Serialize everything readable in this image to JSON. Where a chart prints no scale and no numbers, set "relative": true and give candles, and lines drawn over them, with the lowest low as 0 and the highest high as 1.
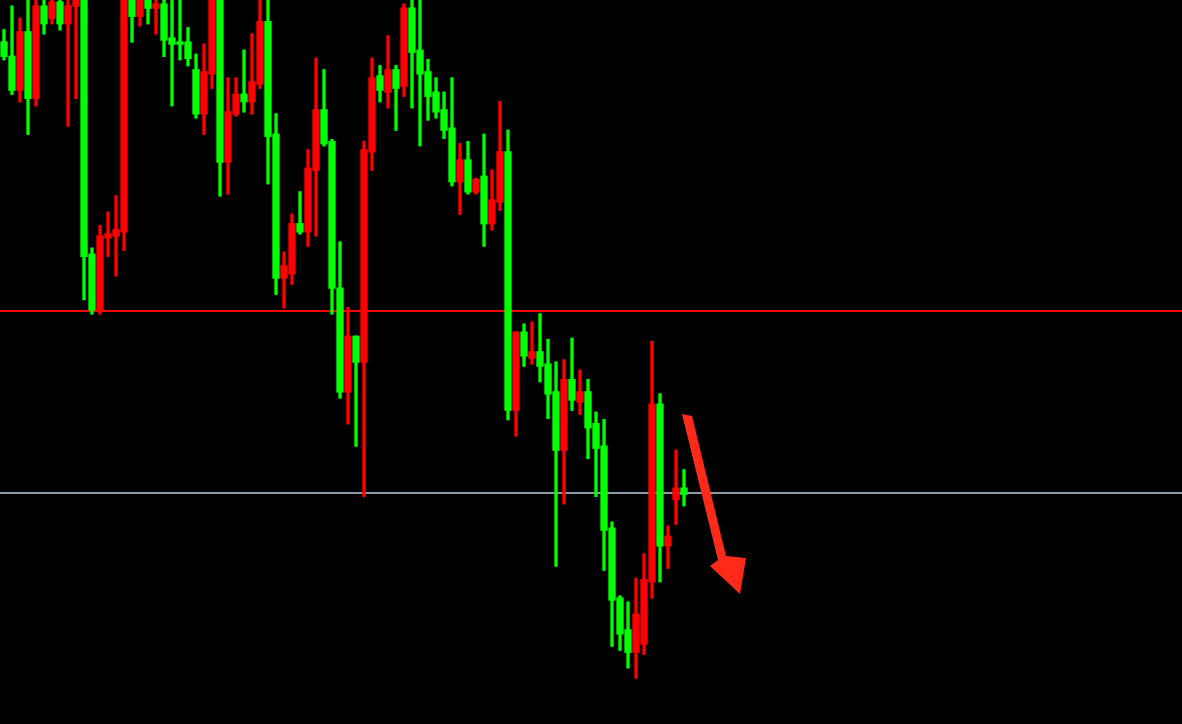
{
  "chart_data": {
    "type": "candlestick",
    "relative": true,
    "legend": false,
    "categories": [
      null,
      null,
      null,
      null,
      null,
      null,
      null,
      null,
      null,
      null,
      null,
      null,
      null,
      null,
      null,
      null,
      null,
      null,
      null,
      null,
      null,
      null,
      null,
      null,
      null,
      null,
      null,
      null,
      null,
      null,
      null,
      null,
      null,
      null,
      null,
      null,
      null,
      null,
      null,
      null,
      null,
      null,
      null,
      null,
      null,
      null,
      null,
      null,
      null,
      null,
      null,
      null,
      null,
      null,
      null,
      null,
      null,
      null,
      null,
      null,
      null,
      null,
      null,
      null,
      null,
      null,
      null,
      null,
      null,
      null,
      null,
      null,
      null,
      null,
      null,
      null,
      null,
      null,
      null,
      null,
      null,
      null,
      null,
      null,
      null,
      null
    ],
    "ohlc": [
      [
        0.938,
        0.956,
        0.912,
        0.917
      ],
      [
        0.917,
        0.991,
        0.861,
        0.867
      ],
      [
        0.867,
        0.973,
        0.85,
        0.953
      ],
      [
        0.953,
        1,
        0.802,
        0.855
      ],
      [
        0.855,
        1,
        0.844,
        0.991
      ],
      [
        0.991,
        1,
        0.95,
        0.965
      ],
      [
        0.973,
        1,
        0.965,
        0.997
      ],
      [
        0.997,
        1,
        0.956,
        0.965
      ],
      [
        0.965,
        1,
        0.814,
        0.991
      ],
      [
        0.991,
        1,
        0.855,
        1
      ],
      [
        1,
        1,
        0.558,
        0.622
      ],
      [
        0.625,
        0.634,
        0.537,
        0.543
      ],
      [
        0.543,
        0.667,
        0.537,
        0.652
      ],
      [
        0.649,
        0.687,
        0.622,
        0.655
      ],
      [
        0.652,
        0.711,
        0.593,
        0.661
      ],
      [
        0.658,
        1,
        0.631,
        1
      ],
      [
        1,
        1,
        0.938,
        0.976
      ],
      [
        0.976,
        1,
        0.962,
        1
      ],
      [
        1,
        1,
        0.965,
        0.988
      ],
      [
        0.988,
        1,
        0.95,
        0.994
      ],
      [
        0.994,
        1,
        0.917,
        0.941
      ],
      [
        0.944,
        1,
        0.844,
        0.935
      ],
      [
        0.938,
        1,
        0.912,
        0.935
      ],
      [
        0.938,
        0.959,
        0.903,
        0.914
      ],
      [
        0.897,
        0.92,
        0.826,
        0.832
      ],
      [
        0.832,
        0.935,
        0.802,
        0.894
      ],
      [
        0.891,
        1,
        0.87,
        1
      ],
      [
        1,
        1,
        0.711,
        0.761
      ],
      [
        0.761,
        0.885,
        0.714,
        0.835
      ],
      [
        0.832,
        0.885,
        0.829,
        0.861
      ],
      [
        0.861,
        0.926,
        0.835,
        0.85
      ],
      [
        0.85,
        0.95,
        0.832,
        0.879
      ],
      [
        0.876,
        1,
        0.87,
        0.968
      ],
      [
        0.968,
        1,
        0.729,
        0.799
      ],
      [
        0.802,
        0.832,
        0.566,
        0.59
      ],
      [
        0.59,
        0.628,
        0.546,
        0.608
      ],
      [
        0.596,
        0.684,
        0.581,
        0.67
      ],
      [
        0.67,
        0.717,
        0.655,
        0.658
      ],
      [
        0.658,
        0.779,
        0.637,
        0.752
      ],
      [
        0.749,
        0.914,
        0.652,
        0.838
      ],
      [
        0.838,
        0.897,
        0.785,
        0.788
      ],
      [
        0.791,
        0.794,
        0.537,
        0.575
      ],
      [
        0.575,
        0.643,
        0.413,
        0.422
      ],
      [
        0.422,
        0.546,
        0.375,
        0.504
      ],
      [
        0.504,
        0.504,
        0.342,
        0.466
      ],
      [
        0.466,
        0.791,
        0.268,
        0.779
      ],
      [
        0.776,
        0.914,
        0.749,
        0.885
      ],
      [
        0.888,
        0.903,
        0.85,
        0.867
      ],
      [
        0.864,
        0.947,
        0.841,
        0.897
      ],
      [
        0.897,
        0.903,
        0.808,
        0.87
      ],
      [
        0.873,
        0.994,
        0.858,
        0.988
      ],
      [
        0.988,
        1,
        0.841,
        0.923
      ],
      [
        0.926,
        1,
        0.785,
        0.891
      ],
      [
        0.894,
        0.912,
        0.823,
        0.858
      ],
      [
        0.864,
        0.885,
        0.826,
        0.835
      ],
      [
        0.838,
        0.864,
        0.796,
        0.808
      ],
      [
        0.811,
        0.885,
        0.726,
        0.732
      ],
      [
        0.732,
        0.788,
        0.684,
        0.764
      ],
      [
        0.764,
        0.791,
        0.714,
        0.717
      ],
      [
        0.717,
        0.737,
        0.714,
        0.735
      ],
      [
        0.74,
        0.802,
        0.637,
        0.67
      ],
      [
        0.67,
        0.749,
        0.661,
        0.705
      ],
      [
        0.702,
        0.85,
        0.69,
        0.776
      ],
      [
        0.776,
        0.808,
        0.381,
        0.395
      ],
      [
        0.395,
        0.51,
        0.357,
        0.51
      ],
      [
        0.51,
        0.522,
        0.46,
        0.475
      ],
      [
        0.472,
        0.525,
        0.463,
        0.481
      ],
      [
        0.481,
        0.537,
        0.437,
        0.46
      ],
      [
        0.463,
        0.499,
        0.383,
        0.419
      ],
      [
        0.422,
        0.466,
        0.165,
        0.336
      ],
      [
        0.336,
        0.469,
        0.257,
        0.44
      ],
      [
        0.44,
        0.501,
        0.395,
        0.41
      ],
      [
        0.407,
        0.454,
        0.389,
        0.422
      ],
      [
        0.422,
        0.44,
        0.324,
        0.369
      ],
      [
        0.375,
        0.392,
        0.268,
        0.339
      ],
      [
        0.342,
        0.381,
        0.159,
        0.218
      ],
      [
        0.221,
        0.23,
        0.047,
        0.115
      ],
      [
        0.118,
        0.121,
        0.041,
        0.065
      ],
      [
        0.071,
        0.112,
        0.015,
        0.038
      ],
      [
        0.038,
        0.147,
        0,
        0.094
      ],
      [
        0.05,
        0.183,
        0.035,
        0.145
      ],
      [
        0.142,
        0.496,
        0.118,
        0.404
      ],
      [
        0.404,
        0.419,
        0.142,
        0.195
      ],
      [
        0.195,
        0.224,
        0.162,
        0.209
      ],
      [
        0.263,
        0.336,
        0.227,
        0.28
      ],
      [
        0.28,
        0.307,
        0.254,
        0.271
      ]
    ],
    "colors": [
      "#00ff00",
      "#00ff00",
      "#ff0000",
      "#00ff00",
      "#ff0000",
      "#00ff00",
      "#ff0000",
      "#00ff00",
      "#ff0000",
      "#ff0000",
      "#00ff00",
      "#00ff00",
      "#ff0000",
      "#ff0000",
      "#ff0000",
      "#ff0000",
      "#00ff00",
      "#ff0000",
      "#00ff00",
      "#ff0000",
      "#00ff00",
      "#00ff00",
      "#00ff00",
      "#00ff00",
      "#00ff00",
      "#ff0000",
      "#ff0000",
      "#00ff00",
      "#ff0000",
      "#ff0000",
      "#00ff00",
      "#ff0000",
      "#ff0000",
      "#00ff00",
      "#00ff00",
      "#ff0000",
      "#ff0000",
      "#00ff00",
      "#ff0000",
      "#ff0000",
      "#00ff00",
      "#00ff00",
      "#00ff00",
      "#ff0000",
      "#00ff00",
      "#ff0000",
      "#ff0000",
      "#00ff00",
      "#ff0000",
      "#00ff00",
      "#ff0000",
      "#00ff00",
      "#00ff00",
      "#00ff00",
      "#00ff00",
      "#00ff00",
      "#00ff00",
      "#ff0000",
      "#00ff00",
      "#ff0000",
      "#00ff00",
      "#ff0000",
      "#ff0000",
      "#00ff00",
      "#ff0000",
      "#00ff00",
      "#ff0000",
      "#00ff00",
      "#00ff00",
      "#00ff00",
      "#ff0000",
      "#00ff00",
      "#ff0000",
      "#00ff00",
      "#00ff00",
      "#00ff00",
      "#00ff00",
      "#00ff00",
      "#00ff00",
      "#ff0000",
      "#ff0000",
      "#ff0000",
      "#00ff00",
      "#ff0000",
      "#ff0000",
      "#00ff00"
    ],
    "ref_lines": [
      {
        "axis": "y",
        "value": 0.543,
        "color": "#ff0000"
      },
      {
        "axis": "y",
        "value": 0.274,
        "color": "#8c9bab"
      }
    ]
  }
}
